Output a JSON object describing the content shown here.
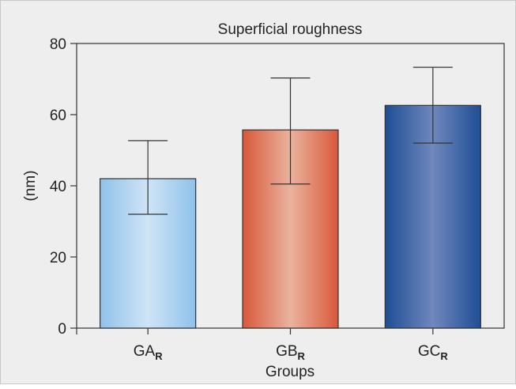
{
  "chart_data": {
    "type": "bar",
    "title": "Superficial roughness",
    "xlabel": "Groups",
    "ylabel": "(nm)",
    "ylim": [
      0,
      80
    ],
    "yticks": [
      0,
      20,
      40,
      60,
      80
    ],
    "categories": [
      {
        "main": "GA",
        "sub": "R"
      },
      {
        "main": "GB",
        "sub": "R"
      },
      {
        "main": "GC",
        "sub": "R"
      }
    ],
    "values": [
      42,
      55.7,
      62.6
    ],
    "error_high": [
      52.7,
      70.3,
      73.3
    ],
    "error_low": [
      32,
      40.5,
      52
    ],
    "colors": [
      {
        "edge": "#8fc2ea",
        "center": "#cfe4f6"
      },
      {
        "edge": "#d8583a",
        "center": "#eab39e"
      },
      {
        "edge": "#1e4e95",
        "center": "#7088bd"
      }
    ],
    "background": "#eeeeee",
    "grid": false,
    "legend": "none"
  }
}
